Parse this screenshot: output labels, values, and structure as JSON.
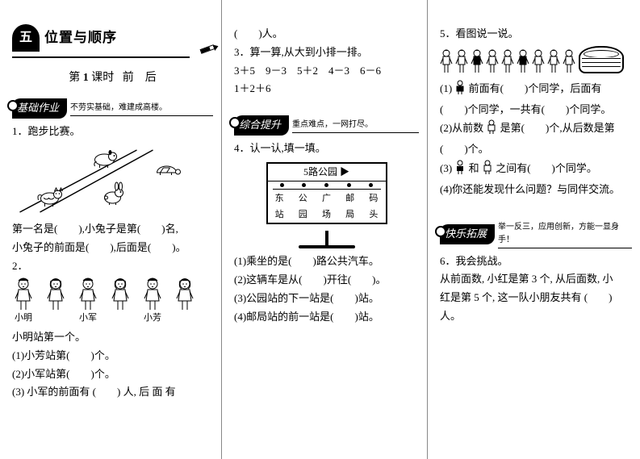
{
  "unit": {
    "badge": "五",
    "title": "位置与顺序"
  },
  "lesson": {
    "prefix": "第",
    "num": "1",
    "mid": "课时",
    "a": "前",
    "b": "后"
  },
  "banners": {
    "basic": {
      "label": "基础作业",
      "sub": "不劳实基础，难建成高楼。"
    },
    "synth": {
      "label": "综合提升",
      "sub": "重点难点，一网打尽。"
    },
    "ext": {
      "label": "快乐拓展",
      "sub": "举一反三，应用创新，方能一显身手！"
    }
  },
  "col1": {
    "q1_title": "1．跑步比赛。",
    "animals": [
      "小狗",
      "小乌龟",
      "小猫",
      "小兔子"
    ],
    "q1_a": "第一名是(　　),小兔子是第(　　)名,",
    "q1_b": "小兔子的前面是(　　),后面是(　　)。",
    "q2_title": "2．",
    "kids": [
      {
        "name": "小明"
      },
      {
        "name": ""
      },
      {
        "name": "小军"
      },
      {
        "name": ""
      },
      {
        "name": "小芳"
      },
      {
        "name": ""
      }
    ],
    "q2_lead": "小明站第一个。",
    "q2_1": "(1)小芳站第(　　)个。",
    "q2_2": "(2)小军站第(　　)个。",
    "q2_3": "(3) 小军的前面有 (　　) 人, 后 面 有"
  },
  "col2": {
    "cont": "(　　)人。",
    "q3_title": "3．算一算,从大到小排一排。",
    "q3_exprs": "3＋5　9－3　5＋2　4－3　6－6",
    "q3_extra": "1＋2＋6",
    "q4_title": "4．认一认,填一填。",
    "sign": {
      "title": "5路公园",
      "arrow": "▶",
      "stops_top": [
        "东",
        "公",
        "广",
        "邮",
        "码"
      ],
      "stops_bot": [
        "站",
        "园",
        "场",
        "局",
        "头"
      ]
    },
    "q4_1": "(1)乘坐的是(　　)路公共汽车。",
    "q4_2": "(2)这辆车是从(　　)开往(　　)。",
    "q4_3": "(3)公园站的下一站是(　　)站。",
    "q4_4": "(4)邮局站的前一站是(　　)站。"
  },
  "col3": {
    "q5_title": "5．看图说一说。",
    "queue_count": 9,
    "q5_1a": "(1)",
    "q5_1b": "前面有(　　)个同学，后面有",
    "q5_1c": "(　　)个同学，一共有(　　)个同学。",
    "q5_2a": "(2)从前数",
    "q5_2b": "是第(　　)个,从后数是第",
    "q5_2c": "(　　)个。",
    "q5_3a": "(3)",
    "q5_3b": "和",
    "q5_3c": "之间有(　　)个同学。",
    "q5_4": "(4)你还能发现什么问题？与同伴交流。",
    "q6_title": "6．我会挑战。",
    "q6_a": "从前面数, 小红是第 3 个, 从后面数, 小",
    "q6_b": "红是第 5 个, 这一队小朋友共有 (　　)",
    "q6_c": "人。"
  },
  "colors": {
    "ink": "#000000",
    "paper": "#ffffff",
    "rule": "#888888"
  }
}
